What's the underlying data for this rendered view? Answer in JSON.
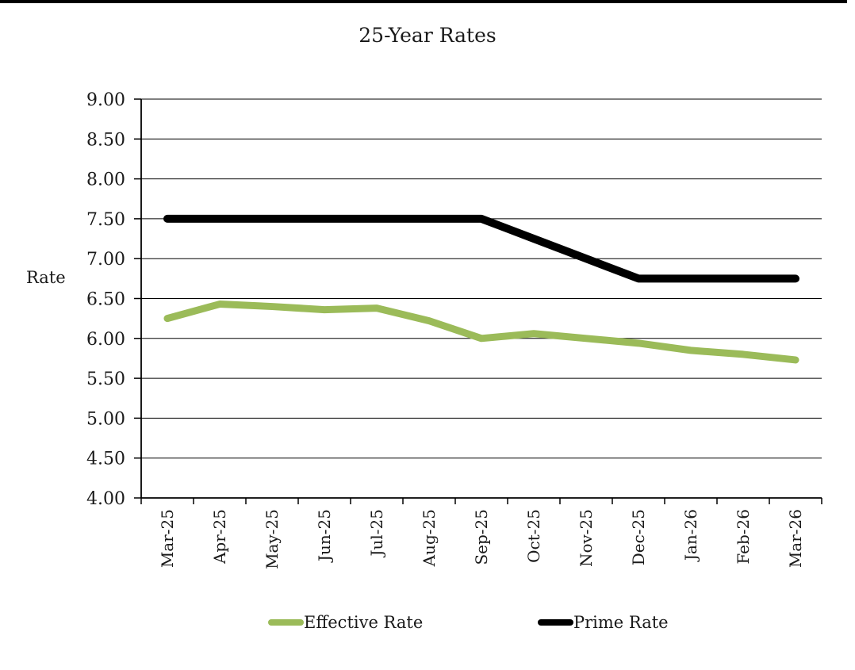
{
  "page": {
    "title": "25-Year Rates",
    "y_axis_title": "Rate"
  },
  "chart_data": {
    "type": "line",
    "title": "25-Year Rates",
    "xlabel": "",
    "ylabel": "Rate",
    "ylim": [
      4.0,
      9.0
    ],
    "ytick_step": 0.5,
    "ytick_labels": [
      "9.00",
      "8.50",
      "8.00",
      "7.50",
      "7.00",
      "6.50",
      "6.00",
      "5.50",
      "5.00",
      "4.50",
      "4.00"
    ],
    "ytick_values": [
      9.0,
      8.5,
      8.0,
      7.5,
      7.0,
      6.5,
      6.0,
      5.5,
      5.0,
      4.5,
      4.0
    ],
    "categories": [
      "Mar-25",
      "Apr-25",
      "May-25",
      "Jun-25",
      "Jul-25",
      "Aug-25",
      "Sep-25",
      "Oct-25",
      "Nov-25",
      "Dec-25",
      "Jan-26",
      "Feb-26",
      "Mar-26"
    ],
    "grid": "horizontal",
    "legend_position": "bottom",
    "series": [
      {
        "name": "Effective Rate",
        "color": "#9bbb59",
        "values": [
          6.25,
          6.43,
          6.4,
          6.36,
          6.38,
          6.22,
          6.0,
          6.06,
          6.0,
          5.94,
          5.85,
          5.8,
          5.73
        ]
      },
      {
        "name": "Prime Rate",
        "color": "#000000",
        "values": [
          7.5,
          7.5,
          7.5,
          7.5,
          7.5,
          7.5,
          7.5,
          7.25,
          7.0,
          6.75,
          6.75,
          6.75,
          6.75
        ]
      }
    ]
  },
  "legend": {
    "items": [
      {
        "label": "Effective Rate",
        "color": "#9bbb59"
      },
      {
        "label": "Prime Rate",
        "color": "#000000"
      }
    ]
  }
}
